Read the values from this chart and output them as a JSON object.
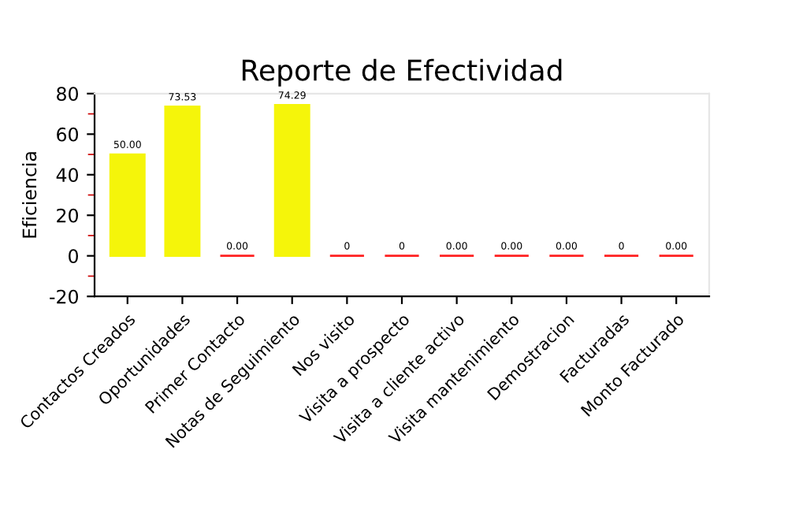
{
  "chart_data": {
    "type": "bar",
    "title": "Reporte de Efectividad",
    "ylabel": "Eficiencia",
    "categories": [
      "Contactos Creados",
      "Oportunidades",
      "Primer Contacto",
      "Notas de Seguimiento",
      "Nos visito",
      "Visita a prospecto",
      "Visita a cliente activo",
      "Visita mantenimiento",
      "Demostracion",
      "Facturadas",
      "Monto Facturado"
    ],
    "values": [
      50,
      73.53,
      0,
      74.29,
      0,
      0,
      0,
      0,
      0,
      0,
      0
    ],
    "value_labels": [
      "50.00",
      "73.53",
      "0.00",
      "74.29",
      "0",
      "0",
      "0.00",
      "0.00",
      "0.00",
      "0",
      "0.00"
    ],
    "colors": [
      "#f5f50a",
      "#f5f50a",
      "#ff2020",
      "#f5f50a",
      "#ff2020",
      "#ff2020",
      "#ff2020",
      "#ff2020",
      "#ff2020",
      "#ff2020",
      "#ff2020"
    ],
    "ylim": [
      -20,
      80
    ],
    "yticks": [
      -20,
      0,
      20,
      40,
      60,
      80
    ],
    "grid": false,
    "legend": false
  }
}
